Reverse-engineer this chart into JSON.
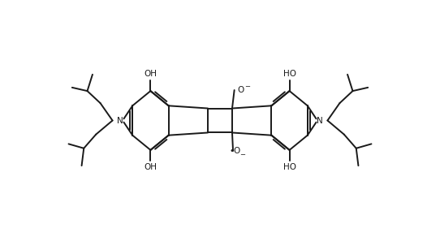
{
  "bg_color": "#ffffff",
  "line_color": "#1a1a1a",
  "line_width": 1.4,
  "figsize": [
    5.42,
    2.97
  ],
  "dpi": 100,
  "text_color": "#1a1a1a",
  "font_size": 7.5,
  "font_size_charge": 6.0,
  "xlim": [
    0,
    10
  ],
  "ylim": [
    0,
    5.5
  ]
}
